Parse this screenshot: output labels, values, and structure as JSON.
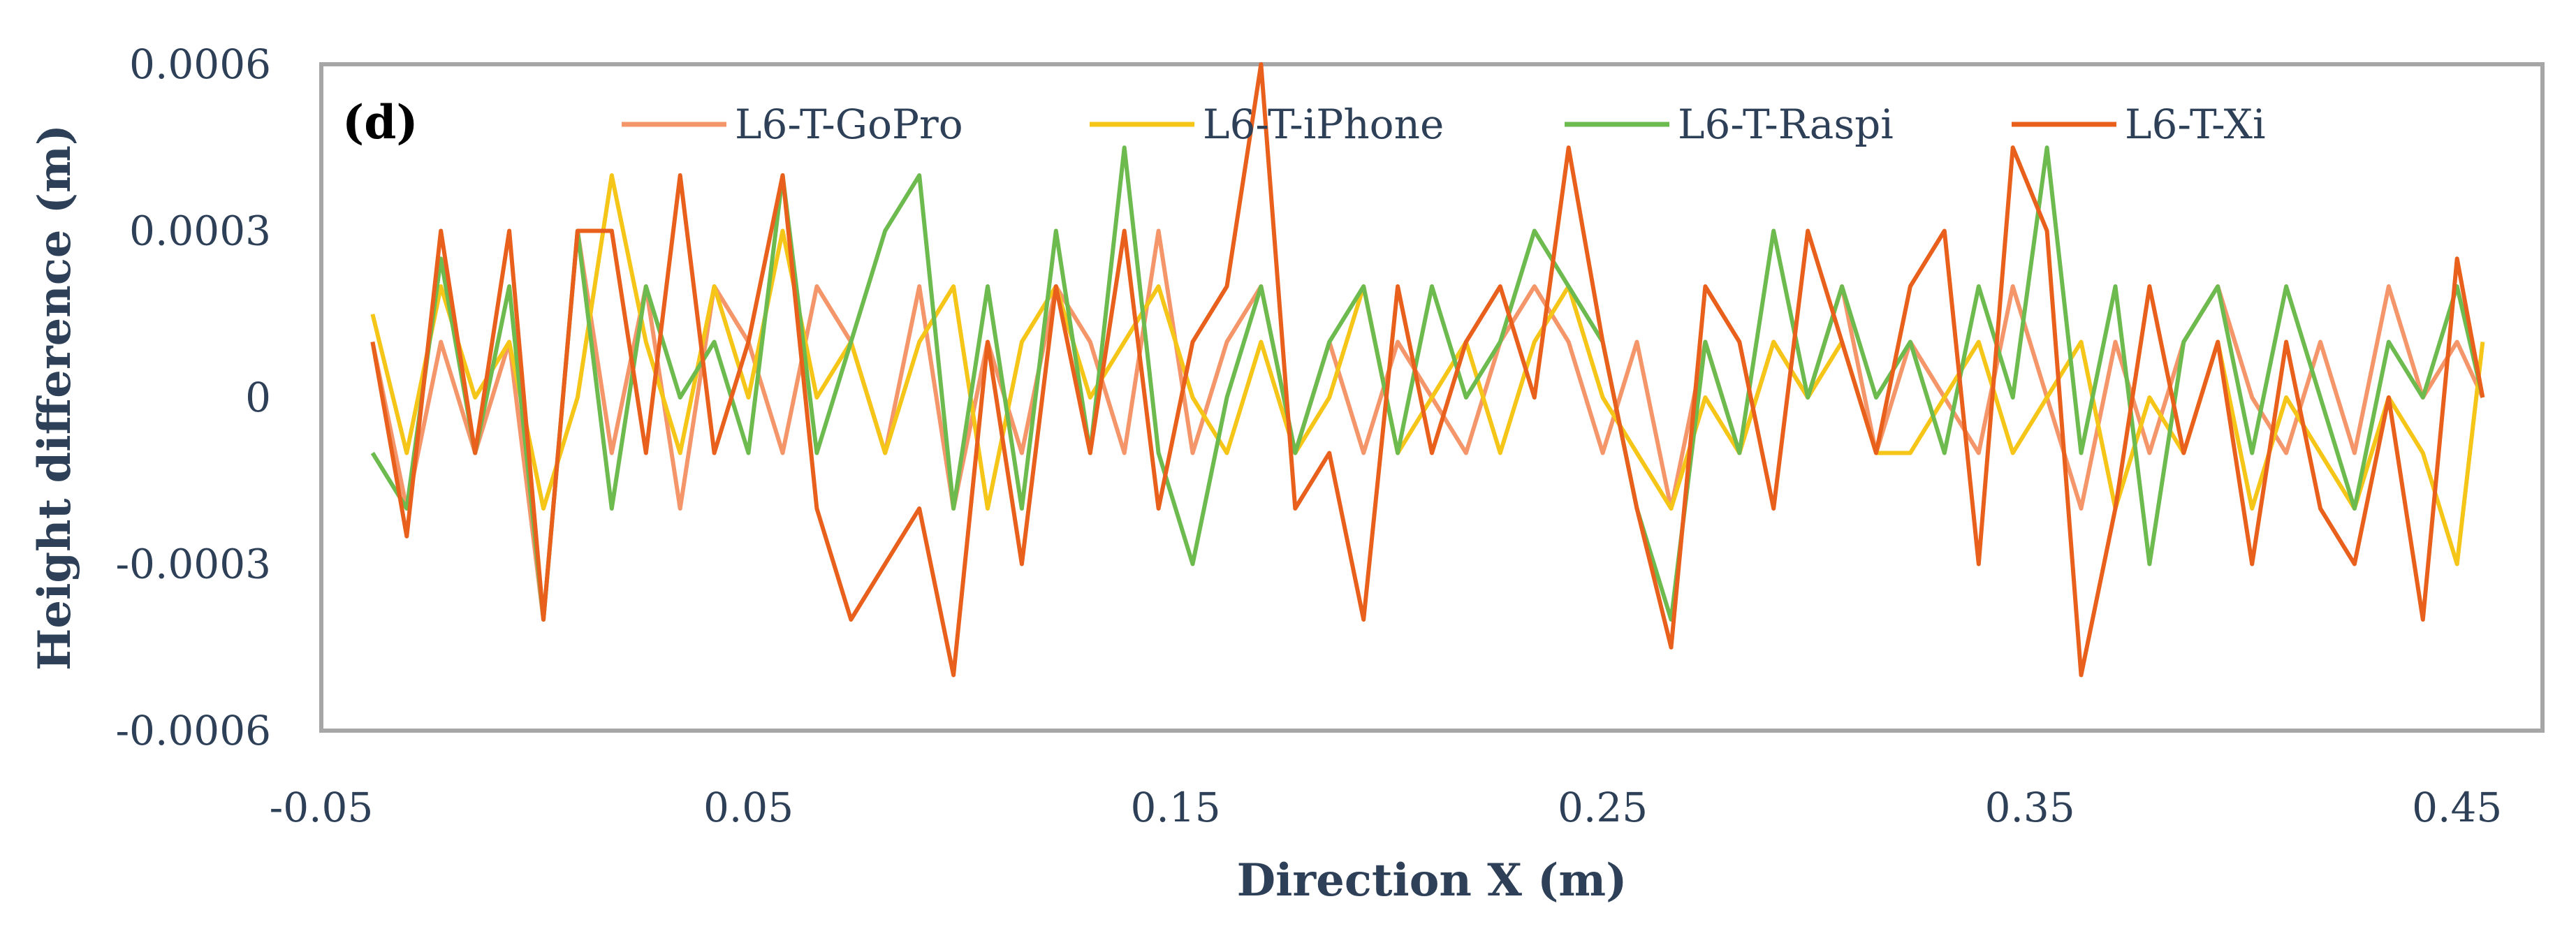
{
  "chart_data": {
    "type": "line",
    "title": "",
    "panel_label": "(d)",
    "xlabel": "Direction X (m)",
    "ylabel": "Height difference (m)",
    "xlim": [
      -0.05,
      0.47
    ],
    "ylim": [
      -0.0006,
      0.0006
    ],
    "x_ticks": [
      -0.05,
      0.05,
      0.15,
      0.25,
      0.35,
      0.45
    ],
    "x_tick_labels": [
      "-0.05",
      "0.05",
      "0.15",
      "0.25",
      "0.35",
      "0.45"
    ],
    "y_ticks": [
      0.0006,
      0.0003,
      0,
      -0.0003,
      -0.0006
    ],
    "y_tick_labels": [
      "0.0006",
      "0.0003",
      "0",
      "-0.0003",
      "-0.0006"
    ],
    "grid": false,
    "legend_position": "top",
    "series": [
      {
        "name": "L6-T-GoPro",
        "color": "#f4956a",
        "x": [
          -0.038,
          -0.03,
          -0.022,
          -0.014,
          -0.006,
          0.002,
          0.01,
          0.018,
          0.026,
          0.034,
          0.042,
          0.05,
          0.058,
          0.066,
          0.074,
          0.082,
          0.09,
          0.098,
          0.106,
          0.114,
          0.122,
          0.13,
          0.138,
          0.146,
          0.154,
          0.162,
          0.17,
          0.178,
          0.186,
          0.194,
          0.202,
          0.21,
          0.218,
          0.226,
          0.234,
          0.242,
          0.25,
          0.258,
          0.266,
          0.274,
          0.282,
          0.29,
          0.298,
          0.306,
          0.314,
          0.322,
          0.33,
          0.338,
          0.346,
          0.354,
          0.362,
          0.37,
          0.378,
          0.386,
          0.394,
          0.402,
          0.41,
          0.418,
          0.426,
          0.434,
          0.442,
          0.45,
          0.456
        ],
        "y": [
          0.0001,
          -0.0002,
          0.0001,
          -0.0001,
          0.0001,
          -0.0004,
          0.0003,
          -0.0001,
          0.0002,
          -0.0002,
          0.0002,
          0.0001,
          -0.0001,
          0.0002,
          0.0001,
          -0.0001,
          0.0002,
          -0.0002,
          0.0001,
          -0.0001,
          0.0002,
          0.0001,
          -0.0001,
          0.0003,
          -0.0001,
          0.0001,
          0.0002,
          -0.0001,
          0.0001,
          -0.0001,
          0.0001,
          0.0,
          -0.0001,
          0.0001,
          0.0002,
          0.0001,
          -0.0001,
          0.0001,
          -0.0002,
          0.0001,
          -0.0001,
          0.0001,
          0.0,
          0.0002,
          -0.0001,
          0.0001,
          0.0,
          -0.0001,
          0.0002,
          0.0,
          -0.0002,
          0.0001,
          -0.0001,
          0.0001,
          0.0002,
          0.0,
          -0.0001,
          0.0001,
          -0.0001,
          0.0002,
          0.0,
          0.0001,
          0.0
        ]
      },
      {
        "name": "L6-T-iPhone",
        "color": "#f5c518",
        "x": [
          -0.038,
          -0.03,
          -0.022,
          -0.014,
          -0.006,
          0.002,
          0.01,
          0.018,
          0.026,
          0.034,
          0.042,
          0.05,
          0.058,
          0.066,
          0.074,
          0.082,
          0.09,
          0.098,
          0.106,
          0.114,
          0.122,
          0.13,
          0.138,
          0.146,
          0.154,
          0.162,
          0.17,
          0.178,
          0.186,
          0.194,
          0.202,
          0.21,
          0.218,
          0.226,
          0.234,
          0.242,
          0.25,
          0.258,
          0.266,
          0.274,
          0.282,
          0.29,
          0.298,
          0.306,
          0.314,
          0.322,
          0.33,
          0.338,
          0.346,
          0.354,
          0.362,
          0.37,
          0.378,
          0.386,
          0.394,
          0.402,
          0.41,
          0.418,
          0.426,
          0.434,
          0.442,
          0.45,
          0.456
        ],
        "y": [
          0.00015,
          -0.0001,
          0.0002,
          0.0,
          0.0001,
          -0.0002,
          0.0,
          0.0004,
          0.0001,
          -0.0001,
          0.0002,
          0.0,
          0.0003,
          0.0,
          0.0001,
          -0.0001,
          0.0001,
          0.0002,
          -0.0002,
          0.0001,
          0.0002,
          0.0,
          0.0001,
          0.0002,
          0.0,
          -0.0001,
          0.0001,
          -0.0001,
          0.0,
          0.0002,
          -0.0001,
          0.0,
          0.0001,
          -0.0001,
          0.0001,
          0.0002,
          0.0,
          -0.0001,
          -0.0002,
          0.0,
          -0.0001,
          0.0001,
          0.0,
          0.0001,
          -0.0001,
          -0.0001,
          0.0,
          0.0001,
          -0.0001,
          0.0,
          0.0001,
          -0.0002,
          0.0,
          -0.0001,
          0.0001,
          -0.0002,
          0.0,
          -0.0001,
          -0.0002,
          0.0,
          -0.0001,
          -0.0003,
          0.0001
        ]
      },
      {
        "name": "L6-T-Raspi",
        "color": "#6dbb4f",
        "x": [
          -0.038,
          -0.03,
          -0.022,
          -0.014,
          -0.006,
          0.002,
          0.01,
          0.018,
          0.026,
          0.034,
          0.042,
          0.05,
          0.058,
          0.066,
          0.074,
          0.082,
          0.09,
          0.098,
          0.106,
          0.114,
          0.122,
          0.13,
          0.138,
          0.146,
          0.154,
          0.162,
          0.17,
          0.178,
          0.186,
          0.194,
          0.202,
          0.21,
          0.218,
          0.226,
          0.234,
          0.242,
          0.25,
          0.258,
          0.266,
          0.274,
          0.282,
          0.29,
          0.298,
          0.306,
          0.314,
          0.322,
          0.33,
          0.338,
          0.346,
          0.354,
          0.362,
          0.37,
          0.378,
          0.386,
          0.394,
          0.402,
          0.41,
          0.418,
          0.426,
          0.434,
          0.442,
          0.45,
          0.456
        ],
        "y": [
          -0.0001,
          -0.0002,
          0.00025,
          -0.0001,
          0.0002,
          -0.0004,
          0.0003,
          -0.0002,
          0.0002,
          0.0,
          0.0001,
          -0.0001,
          0.0004,
          -0.0001,
          0.0001,
          0.0003,
          0.0004,
          -0.0002,
          0.0002,
          -0.0002,
          0.0003,
          -0.0001,
          0.00045,
          -0.0001,
          -0.0003,
          0.0,
          0.0002,
          -0.0001,
          0.0001,
          0.0002,
          -0.0001,
          0.0002,
          0.0,
          0.0001,
          0.0003,
          0.0002,
          0.0001,
          -0.0002,
          -0.0004,
          0.0001,
          -0.0001,
          0.0003,
          0.0,
          0.0002,
          0.0,
          0.0001,
          -0.0001,
          0.0002,
          0.0,
          0.00045,
          -0.0001,
          0.0002,
          -0.0003,
          0.0001,
          0.0002,
          -0.0001,
          0.0002,
          0.0,
          -0.0002,
          0.0001,
          0.0,
          0.0002,
          0.0
        ]
      },
      {
        "name": "L6-T-Xi",
        "color": "#e8601c",
        "x": [
          -0.038,
          -0.03,
          -0.022,
          -0.014,
          -0.006,
          0.002,
          0.01,
          0.018,
          0.026,
          0.034,
          0.042,
          0.05,
          0.058,
          0.066,
          0.074,
          0.082,
          0.09,
          0.098,
          0.106,
          0.114,
          0.122,
          0.13,
          0.138,
          0.146,
          0.154,
          0.162,
          0.17,
          0.178,
          0.186,
          0.194,
          0.202,
          0.21,
          0.218,
          0.226,
          0.234,
          0.242,
          0.25,
          0.258,
          0.266,
          0.274,
          0.282,
          0.29,
          0.298,
          0.306,
          0.314,
          0.322,
          0.33,
          0.338,
          0.346,
          0.354,
          0.362,
          0.37,
          0.378,
          0.386,
          0.394,
          0.402,
          0.41,
          0.418,
          0.426,
          0.434,
          0.442,
          0.45,
          0.456
        ],
        "y": [
          0.0001,
          -0.00025,
          0.0003,
          -0.0001,
          0.0003,
          -0.0004,
          0.0003,
          0.0003,
          -0.0001,
          0.0004,
          -0.0001,
          0.0001,
          0.0004,
          -0.0002,
          -0.0004,
          -0.0003,
          -0.0002,
          -0.0005,
          0.0001,
          -0.0003,
          0.0002,
          -0.0001,
          0.0003,
          -0.0002,
          0.0001,
          0.0002,
          0.0006,
          -0.0002,
          -0.0001,
          -0.0004,
          0.0002,
          -0.0001,
          0.0001,
          0.0002,
          0.0,
          0.00045,
          0.0001,
          -0.0002,
          -0.00045,
          0.0002,
          0.0001,
          -0.0002,
          0.0003,
          0.0001,
          -0.0001,
          0.0002,
          0.0003,
          -0.0003,
          0.00045,
          0.0003,
          -0.0005,
          -0.0002,
          0.0002,
          -0.0001,
          0.0001,
          -0.0003,
          0.0001,
          -0.0002,
          -0.0003,
          0.0,
          -0.0004,
          0.00025,
          0.0
        ]
      }
    ]
  }
}
